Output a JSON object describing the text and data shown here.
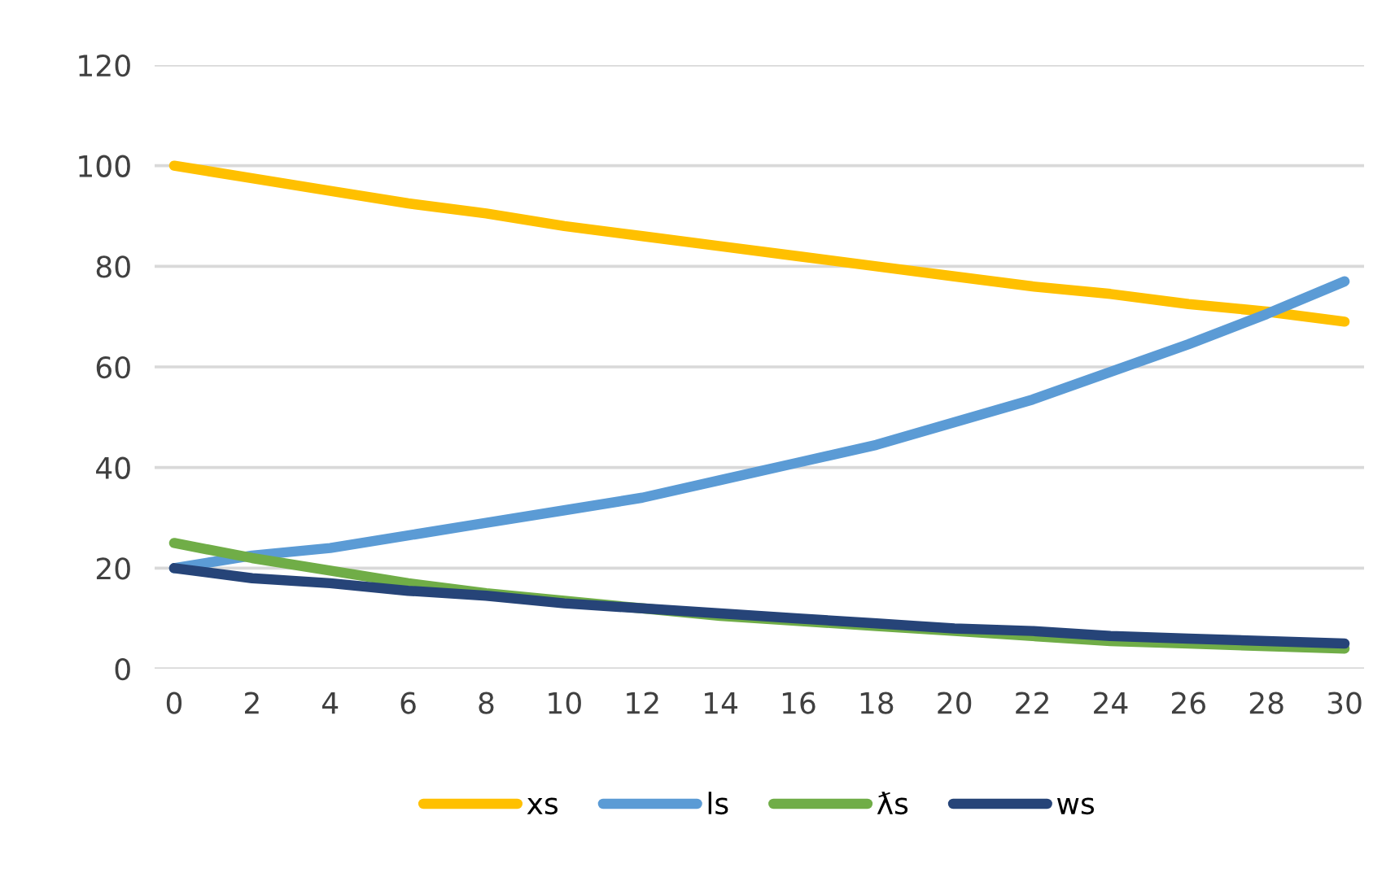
{
  "chart_data": {
    "type": "line",
    "x": [
      0,
      2,
      4,
      6,
      8,
      10,
      12,
      14,
      16,
      18,
      20,
      22,
      24,
      26,
      28,
      30
    ],
    "series": [
      {
        "name": "xs",
        "color": "#ffc000",
        "values": [
          100,
          97.5,
          95,
          92.5,
          90.5,
          88,
          86,
          84,
          82,
          80,
          78,
          76,
          74.5,
          72.5,
          71,
          69
        ]
      },
      {
        "name": "ls",
        "color": "#5b9bd5",
        "values": [
          20,
          22.5,
          24,
          26.5,
          29,
          31.5,
          34,
          37.5,
          41,
          44.5,
          49,
          53.5,
          59,
          64.5,
          70.5,
          77
        ]
      },
      {
        "name": "ƛs",
        "color": "#70ad47",
        "values": [
          25,
          22,
          19.5,
          17,
          15,
          13.5,
          12,
          10.5,
          9.5,
          8.5,
          7.5,
          6.5,
          5.5,
          5,
          4.5,
          4
        ]
      },
      {
        "name": "ws",
        "color": "#264478",
        "values": [
          20,
          18,
          17,
          15.5,
          14.5,
          13,
          12,
          11,
          10,
          9,
          8,
          7.5,
          6.5,
          6,
          5.5,
          5
        ]
      }
    ],
    "xlim": [
      -0.5,
      30.5
    ],
    "xticks": [
      0,
      2,
      4,
      6,
      8,
      10,
      12,
      14,
      16,
      18,
      20,
      22,
      24,
      26,
      28,
      30
    ],
    "ylim": [
      0,
      120
    ],
    "yticks": [
      0,
      20,
      40,
      60,
      80,
      100,
      120
    ],
    "grid": "y",
    "legend": "bottom",
    "marker": "none",
    "line_style": "solid"
  }
}
